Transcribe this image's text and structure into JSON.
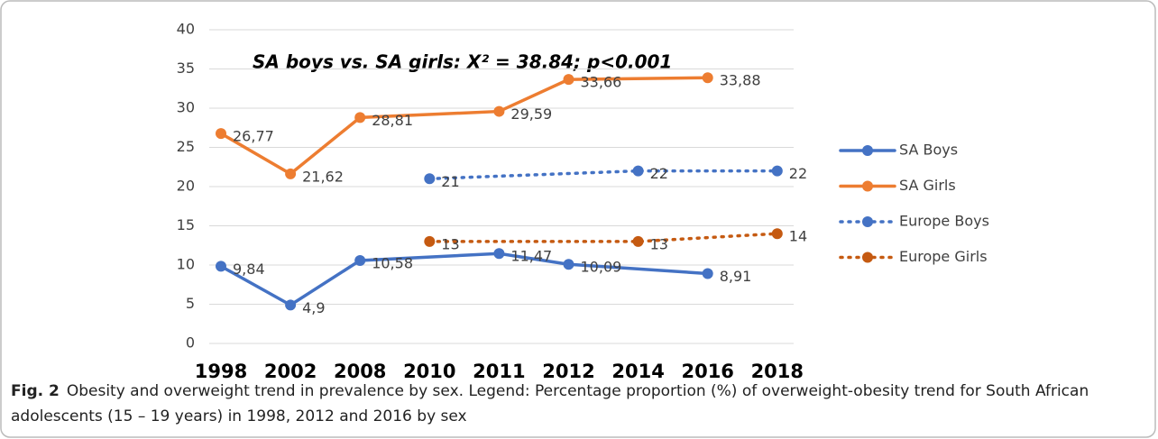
{
  "chart_data": {
    "type": "line",
    "annotation": "SA boys vs. SA girls: X² = 38.84; p<0.001",
    "categories": [
      "1998",
      "2002",
      "2008",
      "2010",
      "2011",
      "2012",
      "2014",
      "2016",
      "2018"
    ],
    "ylim": [
      0,
      40
    ],
    "yticks": [
      0,
      5,
      10,
      15,
      20,
      25,
      30,
      35,
      40
    ],
    "grid": true,
    "legend": "right",
    "series": [
      {
        "name": "SA Boys",
        "color": "#4472c4",
        "dash": "solid",
        "values": [
          9.84,
          4.9,
          10.58,
          null,
          11.47,
          10.09,
          null,
          8.91,
          null
        ],
        "value_labels": [
          "9,84",
          "4,9",
          "10,58",
          null,
          "11,47",
          "10,09",
          null,
          "8,91",
          null
        ]
      },
      {
        "name": "SA Girls",
        "color": "#ed7d31",
        "dash": "solid",
        "values": [
          26.77,
          21.62,
          28.81,
          null,
          29.59,
          33.66,
          null,
          33.88,
          null
        ],
        "value_labels": [
          "26,77",
          "21,62",
          "28,81",
          null,
          "29,59",
          "33,66",
          null,
          "33,88",
          null
        ]
      },
      {
        "name": "Europe Boys",
        "color": "#4472c4",
        "dash": "dotted",
        "values": [
          null,
          null,
          null,
          21,
          null,
          null,
          22,
          null,
          22
        ]
      },
      {
        "name": "Europe Girls",
        "color": "#c55a11",
        "dash": "dotted",
        "values": [
          null,
          null,
          null,
          13,
          null,
          null,
          13,
          null,
          14
        ]
      }
    ]
  },
  "caption": {
    "label": "Fig. 2",
    "text": "Obesity and overweight trend in prevalence by sex. Legend: Percentage proportion (%) of overweight-obesity trend for South African adolescents (15 – 19 years) in 1998, 2012 and 2016 by sex"
  }
}
